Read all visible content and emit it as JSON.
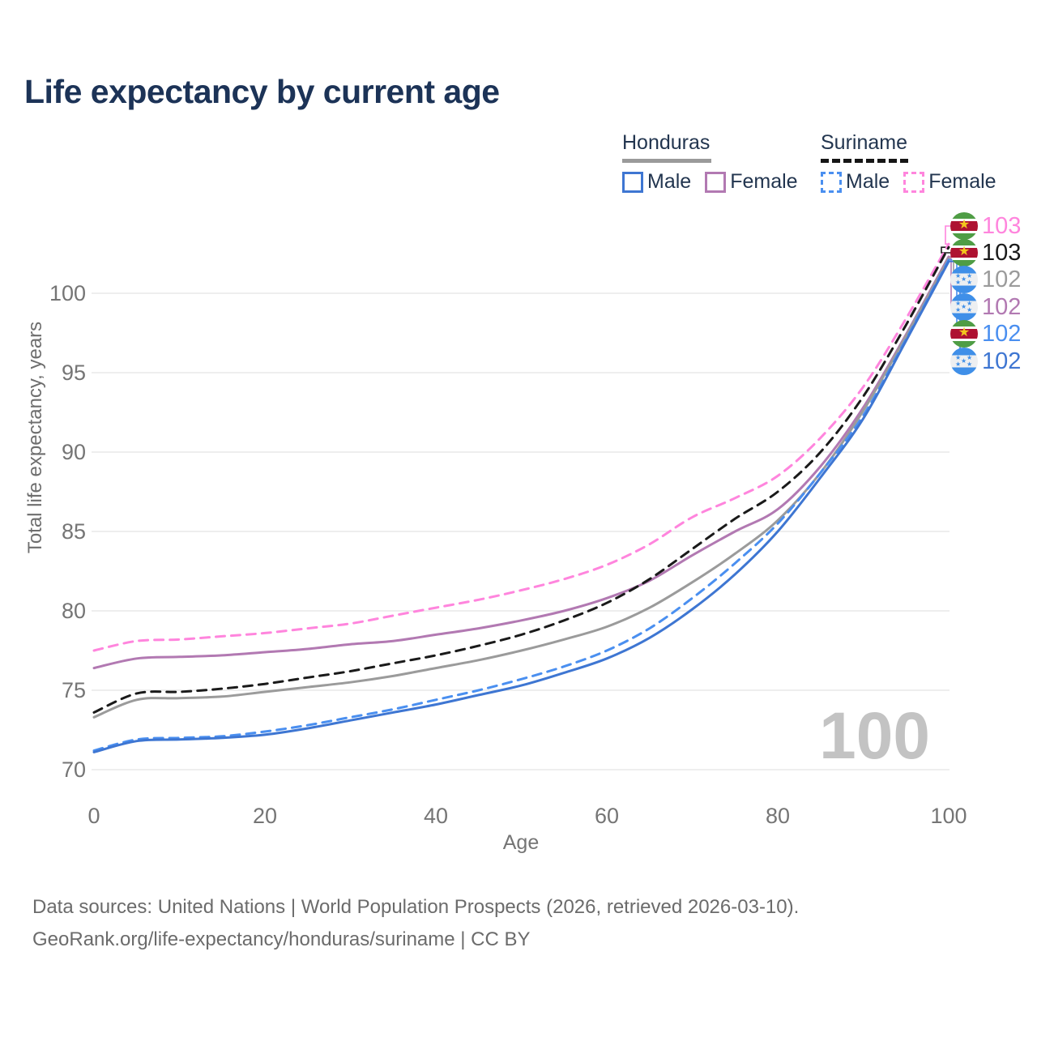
{
  "title": "Life expectancy by current age",
  "legend": {
    "groups": [
      {
        "country": "Honduras",
        "line_style": "solid",
        "underline_color": "#9a9a9a",
        "items": [
          {
            "label": "Male",
            "color": "#3e76d2",
            "dashed": false
          },
          {
            "label": "Female",
            "color": "#b279b2",
            "dashed": false
          }
        ]
      },
      {
        "country": "Suriname",
        "line_style": "dashed",
        "underline_color": "#161616",
        "items": [
          {
            "label": "Male",
            "color": "#4a8ff0",
            "dashed": true
          },
          {
            "label": "Female",
            "color": "#ff85dd",
            "dashed": true
          }
        ]
      }
    ]
  },
  "watermark_age": "100",
  "y_axis": {
    "title": "Total life expectancy, years",
    "ticks": [
      70,
      75,
      80,
      85,
      90,
      95,
      100
    ]
  },
  "x_axis": {
    "title": "Age",
    "ticks": [
      0,
      20,
      40,
      60,
      80,
      100
    ]
  },
  "chart_data": {
    "type": "line",
    "xlabel": "Age",
    "ylabel": "Total life expectancy, years",
    "xlim": [
      0,
      100
    ],
    "ylim": [
      69,
      104
    ],
    "grid": "horizontal",
    "legend_position": "top-right",
    "x": [
      0,
      5,
      10,
      15,
      20,
      25,
      30,
      35,
      40,
      45,
      50,
      55,
      60,
      65,
      70,
      75,
      80,
      85,
      90,
      95,
      100
    ],
    "series": [
      {
        "name": "Suriname Female",
        "country": "Suriname",
        "sex": "female",
        "flag": "suriname-flag-icon",
        "color": "#ff85dd",
        "dashed": true,
        "end_label": "103",
        "values": [
          77.5,
          78.1,
          78.2,
          78.4,
          78.6,
          78.9,
          79.2,
          79.7,
          80.2,
          80.7,
          81.3,
          82.0,
          82.9,
          84.2,
          85.9,
          87.1,
          88.5,
          90.9,
          94.1,
          98.4,
          103.1
        ]
      },
      {
        "name": "Suriname Both sexes",
        "country": "Suriname",
        "sex": "both",
        "flag": "suriname-flag-icon",
        "color": "#1a1a1a",
        "dashed": true,
        "end_label": "103",
        "values": [
          73.6,
          74.8,
          74.9,
          75.1,
          75.4,
          75.8,
          76.2,
          76.7,
          77.2,
          77.8,
          78.5,
          79.4,
          80.5,
          82.0,
          83.9,
          85.8,
          87.5,
          90.0,
          93.5,
          98.0,
          102.9
        ]
      },
      {
        "name": "Honduras Both sexes",
        "country": "Honduras",
        "sex": "both",
        "flag": "honduras-flag-icon",
        "color": "#9b9b9b",
        "dashed": false,
        "end_label": "102",
        "values": [
          73.3,
          74.4,
          74.5,
          74.6,
          74.9,
          75.2,
          75.5,
          75.9,
          76.4,
          76.9,
          77.5,
          78.2,
          79.0,
          80.2,
          81.8,
          83.6,
          85.7,
          88.7,
          92.6,
          97.3,
          102.2
        ]
      },
      {
        "name": "Honduras Female",
        "country": "Honduras",
        "sex": "female",
        "flag": "honduras-flag-icon",
        "color": "#b279b2",
        "dashed": false,
        "end_label": "102",
        "values": [
          76.4,
          77.0,
          77.1,
          77.2,
          77.4,
          77.6,
          77.9,
          78.1,
          78.5,
          78.9,
          79.4,
          80.0,
          80.8,
          81.9,
          83.5,
          85.0,
          86.4,
          89.1,
          92.8,
          97.4,
          102.3
        ]
      },
      {
        "name": "Suriname Male",
        "country": "Suriname",
        "sex": "male",
        "flag": "suriname-flag-icon",
        "color": "#4a8ff0",
        "dashed": true,
        "end_label": "102",
        "values": [
          71.2,
          71.9,
          72.0,
          72.1,
          72.4,
          72.8,
          73.3,
          73.8,
          74.4,
          75.0,
          75.7,
          76.5,
          77.5,
          78.9,
          80.8,
          83.0,
          85.5,
          88.7,
          92.3,
          97.1,
          102.1
        ]
      },
      {
        "name": "Honduras Male",
        "country": "Honduras",
        "sex": "male",
        "flag": "honduras-flag-icon",
        "color": "#3e76d2",
        "dashed": false,
        "end_label": "102",
        "values": [
          71.1,
          71.8,
          71.9,
          72.0,
          72.2,
          72.6,
          73.1,
          73.6,
          74.1,
          74.7,
          75.3,
          76.1,
          77.0,
          78.3,
          80.1,
          82.3,
          85.0,
          88.4,
          92.1,
          97.0,
          102.0
        ]
      }
    ]
  },
  "footer": {
    "line1": "Data sources: United Nations | World Population Prospects (2026, retrieved 2026-03-10).",
    "line2": "GeoRank.org/life-expectancy/honduras/suriname | CC BY"
  }
}
